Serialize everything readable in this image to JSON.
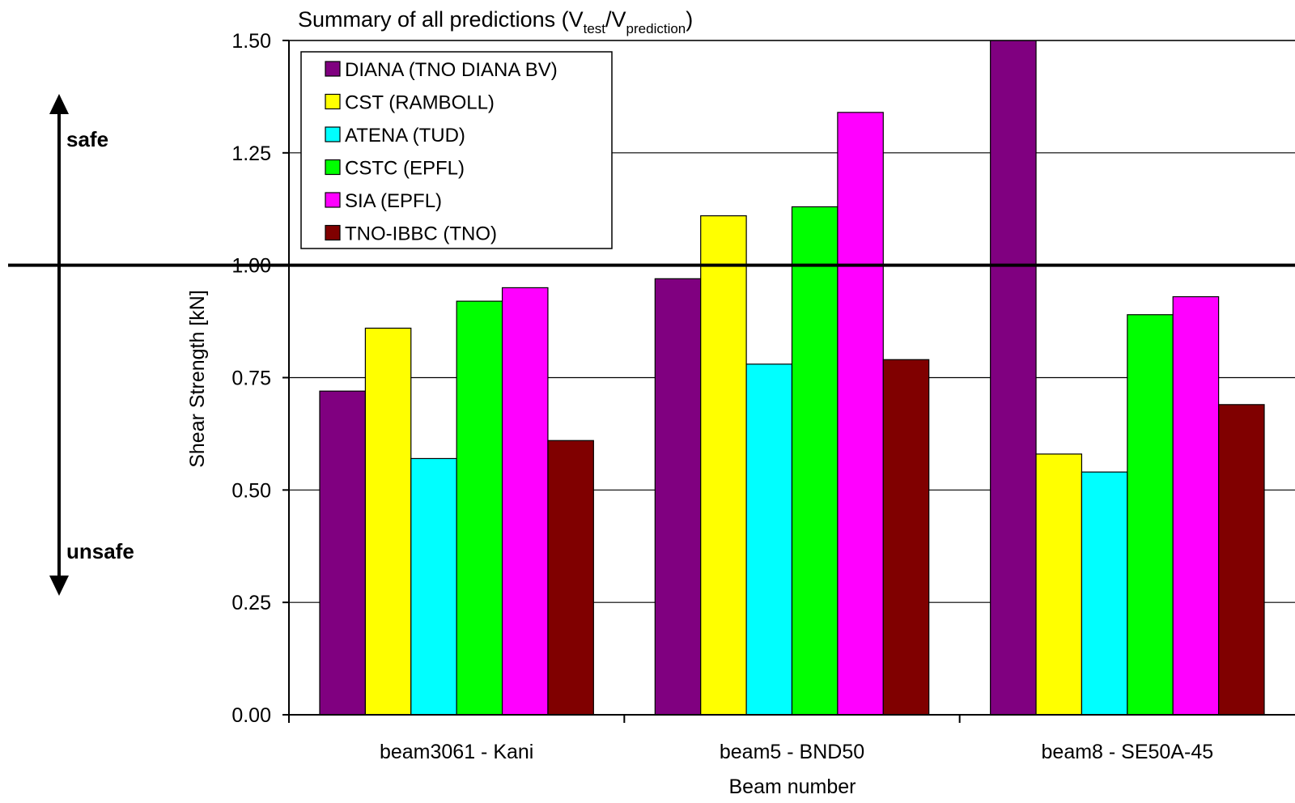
{
  "chart_data": {
    "type": "bar",
    "title": "Summary of all predictions (Vtest/Vprediction)",
    "title_parts": {
      "prefix": "Summary of all predictions (V",
      "sub1": "test",
      "slash": "/V",
      "sub2": "prediction",
      "suffix": ")"
    },
    "xlabel": "Beam number",
    "ylabel": "Shear Strength [kN]",
    "ylim": [
      0,
      1.5
    ],
    "yticks": [
      "0.00",
      "0.25",
      "0.50",
      "0.75",
      "1.00",
      "1.25",
      "1.50"
    ],
    "ytick_values": [
      0,
      0.25,
      0.5,
      0.75,
      1.0,
      1.25,
      1.5
    ],
    "grid": true,
    "reference_line": 1.0,
    "legend_position": "top-left",
    "categories": [
      "beam3061 - Kani",
      "beam5 - BND50",
      "beam8 - SE50A-45"
    ],
    "series": [
      {
        "name": "DIANA (TNO DIANA BV)",
        "color": "#800080",
        "values": [
          0.72,
          0.97,
          1.5
        ]
      },
      {
        "name": "CST (RAMBOLL)",
        "color": "#ffff00",
        "values": [
          0.86,
          1.11,
          0.58
        ]
      },
      {
        "name": "ATENA (TUD)",
        "color": "#00ffff",
        "values": [
          0.57,
          0.78,
          0.54
        ]
      },
      {
        "name": "CSTC (EPFL)",
        "color": "#00ff00",
        "values": [
          0.92,
          1.13,
          0.89
        ]
      },
      {
        "name": "SIA (EPFL)",
        "color": "#ff00ff",
        "values": [
          0.95,
          1.34,
          0.93
        ]
      },
      {
        "name": "TNO-IBBC (TNO)",
        "color": "#800000",
        "values": [
          0.61,
          0.79,
          0.69
        ]
      }
    ]
  },
  "annotations": {
    "safe_label": "safe",
    "unsafe_label": "unsafe"
  }
}
